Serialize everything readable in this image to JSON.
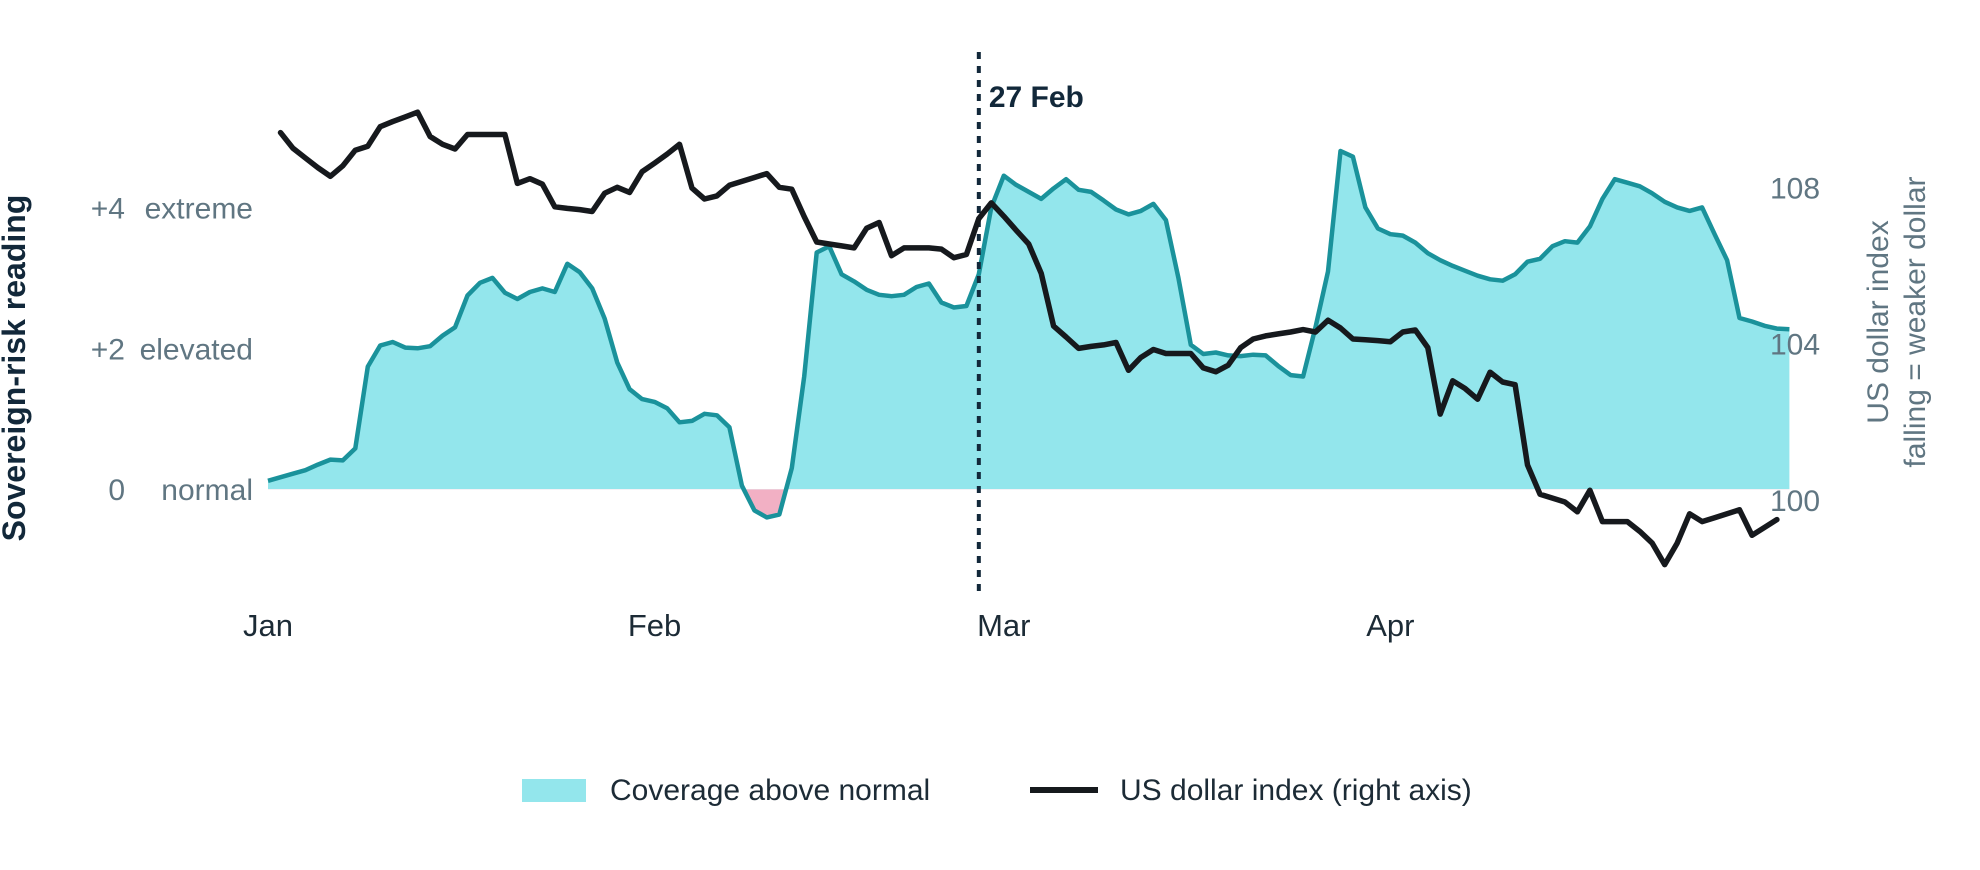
{
  "chart_data": {
    "type": "area",
    "left_axis": {
      "title": "Sovereign-risk reading",
      "labels": [
        {
          "value": 4,
          "num": "+4",
          "text": "extreme"
        },
        {
          "value": 2,
          "num": "+2",
          "text": "elevated"
        },
        {
          "value": 0,
          "num": "0",
          "text": "normal"
        }
      ],
      "ylim": [
        -1.43,
        5.95
      ]
    },
    "right_axis": {
      "title_line1": "US dollar index",
      "title_line2": "falling = weaker dollar",
      "ticks": [
        {
          "value": 108,
          "text": "108"
        },
        {
          "value": 104,
          "text": "104"
        },
        {
          "value": 100,
          "text": "100"
        }
      ],
      "ylim": [
        97.7,
        111.0
      ]
    },
    "x_axis": {
      "ticks": [
        {
          "day": 1,
          "text": "Jan"
        },
        {
          "day": 32,
          "text": "Feb"
        },
        {
          "day": 60,
          "text": "Mar"
        },
        {
          "day": 91,
          "text": "Apr"
        }
      ],
      "xlim": [
        1,
        120
      ]
    },
    "annotation": {
      "day": 58,
      "text": "27 Feb"
    },
    "legend": {
      "position": "bottom-center",
      "items": [
        {
          "label": "Coverage above normal",
          "kind": "area"
        },
        {
          "label": "US dollar index (right axis)",
          "kind": "line"
        }
      ]
    },
    "colors": {
      "area_fill": "#93e6ec",
      "area_stroke": "#1a929b",
      "below_fill": "#f2b0c4",
      "dollar_line": "#16191d"
    },
    "series": [
      {
        "name": "Coverage above normal",
        "axis": "left",
        "points": [
          [
            1,
            0.12
          ],
          [
            3,
            0.22
          ],
          [
            4,
            0.27
          ],
          [
            5,
            0.35
          ],
          [
            6,
            0.42
          ],
          [
            7,
            0.41
          ],
          [
            8,
            0.58
          ],
          [
            9,
            1.74
          ],
          [
            10,
            2.04
          ],
          [
            11,
            2.09
          ],
          [
            12,
            2.01
          ],
          [
            13,
            2.0
          ],
          [
            14,
            2.03
          ],
          [
            15,
            2.18
          ],
          [
            16,
            2.3
          ],
          [
            17,
            2.75
          ],
          [
            18,
            2.93
          ],
          [
            19,
            3.0
          ],
          [
            20,
            2.79
          ],
          [
            21,
            2.7
          ],
          [
            22,
            2.8
          ],
          [
            23,
            2.85
          ],
          [
            24,
            2.8
          ],
          [
            25,
            3.2
          ],
          [
            26,
            3.08
          ],
          [
            27,
            2.85
          ],
          [
            28,
            2.42
          ],
          [
            29,
            1.8
          ],
          [
            30,
            1.42
          ],
          [
            31,
            1.28
          ],
          [
            32,
            1.24
          ],
          [
            33,
            1.15
          ],
          [
            34,
            0.95
          ],
          [
            35,
            0.97
          ],
          [
            36,
            1.07
          ],
          [
            37,
            1.05
          ],
          [
            38,
            0.88
          ],
          [
            39,
            0.05
          ],
          [
            40,
            -0.3
          ],
          [
            41,
            -0.4
          ],
          [
            42,
            -0.36
          ],
          [
            43,
            0.3
          ],
          [
            44,
            1.6
          ],
          [
            45,
            3.36
          ],
          [
            46,
            3.45
          ],
          [
            47,
            3.05
          ],
          [
            48,
            2.95
          ],
          [
            49,
            2.83
          ],
          [
            50,
            2.76
          ],
          [
            51,
            2.74
          ],
          [
            52,
            2.76
          ],
          [
            53,
            2.87
          ],
          [
            54,
            2.92
          ],
          [
            55,
            2.65
          ],
          [
            56,
            2.58
          ],
          [
            57,
            2.6
          ],
          [
            58,
            3.05
          ],
          [
            59,
            4.0
          ],
          [
            60,
            4.45
          ],
          [
            61,
            4.32
          ],
          [
            62,
            4.22
          ],
          [
            63,
            4.12
          ],
          [
            64,
            4.27
          ],
          [
            65,
            4.4
          ],
          [
            66,
            4.25
          ],
          [
            67,
            4.22
          ],
          [
            68,
            4.1
          ],
          [
            69,
            3.97
          ],
          [
            70,
            3.9
          ],
          [
            71,
            3.95
          ],
          [
            72,
            4.05
          ],
          [
            73,
            3.82
          ],
          [
            74,
            3.0
          ],
          [
            75,
            2.05
          ],
          [
            76,
            1.92
          ],
          [
            77,
            1.94
          ],
          [
            78,
            1.9
          ],
          [
            79,
            1.89
          ],
          [
            80,
            1.91
          ],
          [
            81,
            1.9
          ],
          [
            82,
            1.75
          ],
          [
            83,
            1.62
          ],
          [
            84,
            1.6
          ],
          [
            85,
            2.3
          ],
          [
            86,
            3.09
          ],
          [
            87,
            4.8
          ],
          [
            88,
            4.72
          ],
          [
            89,
            4.0
          ],
          [
            90,
            3.7
          ],
          [
            91,
            3.62
          ],
          [
            92,
            3.6
          ],
          [
            93,
            3.5
          ],
          [
            94,
            3.35
          ],
          [
            95,
            3.25
          ],
          [
            96,
            3.17
          ],
          [
            97,
            3.1
          ],
          [
            98,
            3.03
          ],
          [
            99,
            2.98
          ],
          [
            100,
            2.96
          ],
          [
            101,
            3.05
          ],
          [
            102,
            3.23
          ],
          [
            103,
            3.27
          ],
          [
            104,
            3.45
          ],
          [
            105,
            3.52
          ],
          [
            106,
            3.5
          ],
          [
            107,
            3.73
          ],
          [
            108,
            4.12
          ],
          [
            109,
            4.4
          ],
          [
            110,
            4.35
          ],
          [
            111,
            4.3
          ],
          [
            112,
            4.2
          ],
          [
            113,
            4.08
          ],
          [
            114,
            4.0
          ],
          [
            115,
            3.95
          ],
          [
            116,
            4.0
          ],
          [
            117,
            3.62
          ],
          [
            118,
            3.25
          ],
          [
            119,
            2.43
          ],
          [
            120,
            2.38
          ],
          [
            121,
            2.32
          ],
          [
            122,
            2.28
          ],
          [
            123,
            2.27
          ]
        ]
      },
      {
        "name": "US dollar index (right axis)",
        "axis": "right",
        "points": [
          [
            2,
            109.4
          ],
          [
            3,
            109.0
          ],
          [
            4,
            108.75
          ],
          [
            5,
            108.5
          ],
          [
            6,
            108.28
          ],
          [
            7,
            108.55
          ],
          [
            8,
            108.95
          ],
          [
            9,
            109.05
          ],
          [
            10,
            109.55
          ],
          [
            11,
            109.68
          ],
          [
            12,
            109.8
          ],
          [
            13,
            109.92
          ],
          [
            14,
            109.3
          ],
          [
            15,
            109.1
          ],
          [
            16,
            108.98
          ],
          [
            17,
            109.35
          ],
          [
            18,
            109.35
          ],
          [
            19,
            109.35
          ],
          [
            20,
            109.35
          ],
          [
            21,
            108.1
          ],
          [
            22,
            108.22
          ],
          [
            23,
            108.08
          ],
          [
            24,
            107.5
          ],
          [
            25,
            107.46
          ],
          [
            26,
            107.43
          ],
          [
            27,
            107.38
          ],
          [
            28,
            107.85
          ],
          [
            29,
            108.0
          ],
          [
            30,
            107.87
          ],
          [
            31,
            108.4
          ],
          [
            32,
            108.62
          ],
          [
            33,
            108.85
          ],
          [
            34,
            109.1
          ],
          [
            35,
            107.98
          ],
          [
            36,
            107.7
          ],
          [
            37,
            107.78
          ],
          [
            38,
            108.05
          ],
          [
            39,
            108.15
          ],
          [
            40,
            108.25
          ],
          [
            41,
            108.35
          ],
          [
            42,
            108.0
          ],
          [
            43,
            107.95
          ],
          [
            44,
            107.25
          ],
          [
            45,
            106.6
          ],
          [
            46,
            106.55
          ],
          [
            47,
            106.5
          ],
          [
            48,
            106.45
          ],
          [
            49,
            106.95
          ],
          [
            50,
            107.1
          ],
          [
            51,
            106.25
          ],
          [
            52,
            106.45
          ],
          [
            53,
            106.45
          ],
          [
            54,
            106.45
          ],
          [
            55,
            106.42
          ],
          [
            56,
            106.2
          ],
          [
            57,
            106.28
          ],
          [
            58,
            107.2
          ],
          [
            59,
            107.6
          ],
          [
            60,
            107.26
          ],
          [
            61,
            106.9
          ],
          [
            62,
            106.55
          ],
          [
            63,
            105.8
          ],
          [
            64,
            104.45
          ],
          [
            65,
            104.17
          ],
          [
            66,
            103.88
          ],
          [
            67,
            103.93
          ],
          [
            68,
            103.97
          ],
          [
            69,
            104.03
          ],
          [
            70,
            103.32
          ],
          [
            71,
            103.65
          ],
          [
            72,
            103.85
          ],
          [
            73,
            103.75
          ],
          [
            74,
            103.75
          ],
          [
            75,
            103.75
          ],
          [
            76,
            103.38
          ],
          [
            77,
            103.28
          ],
          [
            78,
            103.45
          ],
          [
            79,
            103.9
          ],
          [
            80,
            104.12
          ],
          [
            81,
            104.2
          ],
          [
            82,
            104.25
          ],
          [
            83,
            104.3
          ],
          [
            84,
            104.36
          ],
          [
            85,
            104.3
          ],
          [
            86,
            104.6
          ],
          [
            87,
            104.4
          ],
          [
            88,
            104.12
          ],
          [
            89,
            104.1
          ],
          [
            90,
            104.08
          ],
          [
            91,
            104.05
          ],
          [
            92,
            104.3
          ],
          [
            93,
            104.35
          ],
          [
            94,
            103.9
          ],
          [
            95,
            102.2
          ],
          [
            96,
            103.05
          ],
          [
            97,
            102.85
          ],
          [
            98,
            102.58
          ],
          [
            99,
            103.27
          ],
          [
            100,
            103.02
          ],
          [
            101,
            102.95
          ],
          [
            102,
            100.9
          ],
          [
            103,
            100.15
          ],
          [
            104,
            100.05
          ],
          [
            105,
            99.95
          ],
          [
            106,
            99.7
          ],
          [
            107,
            100.25
          ],
          [
            108,
            99.45
          ],
          [
            109,
            99.45
          ],
          [
            110,
            99.45
          ],
          [
            111,
            99.2
          ],
          [
            112,
            98.9
          ],
          [
            113,
            98.35
          ],
          [
            114,
            98.9
          ],
          [
            115,
            99.65
          ],
          [
            116,
            99.45
          ],
          [
            117,
            99.55
          ],
          [
            118,
            99.65
          ],
          [
            119,
            99.75
          ],
          [
            120,
            99.1
          ],
          [
            121,
            99.3
          ],
          [
            122,
            99.5
          ]
        ]
      }
    ]
  }
}
